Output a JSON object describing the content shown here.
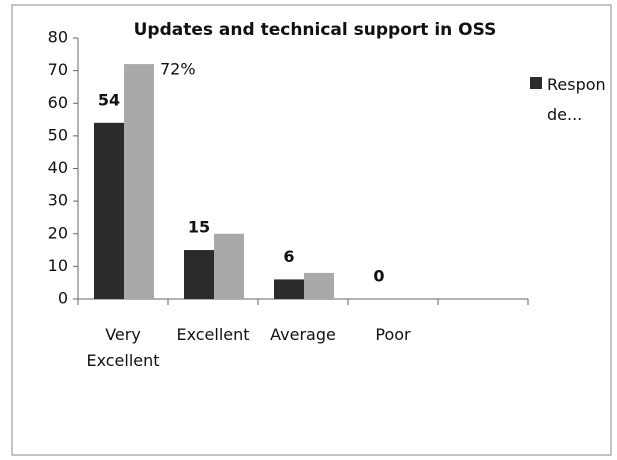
{
  "chart_data": {
    "type": "bar",
    "title": "Updates and technical support in OSS",
    "categories": [
      "Very Excellent",
      "Excellent",
      "Average",
      "Poor",
      null
    ],
    "series": [
      {
        "name": "Responde...",
        "color": "#2b2b2b",
        "values": [
          54,
          15,
          6,
          0,
          null
        ]
      },
      {
        "color": "#a9a9ab",
        "values": [
          72,
          20,
          8,
          0,
          null
        ],
        "value_labels": [
          "72%",
          null,
          null,
          null,
          null
        ]
      }
    ],
    "ylim": [
      0,
      80
    ],
    "yticks": [
      0,
      10,
      20,
      30,
      40,
      50,
      60,
      70,
      80
    ],
    "grid": false,
    "legend": "right"
  }
}
